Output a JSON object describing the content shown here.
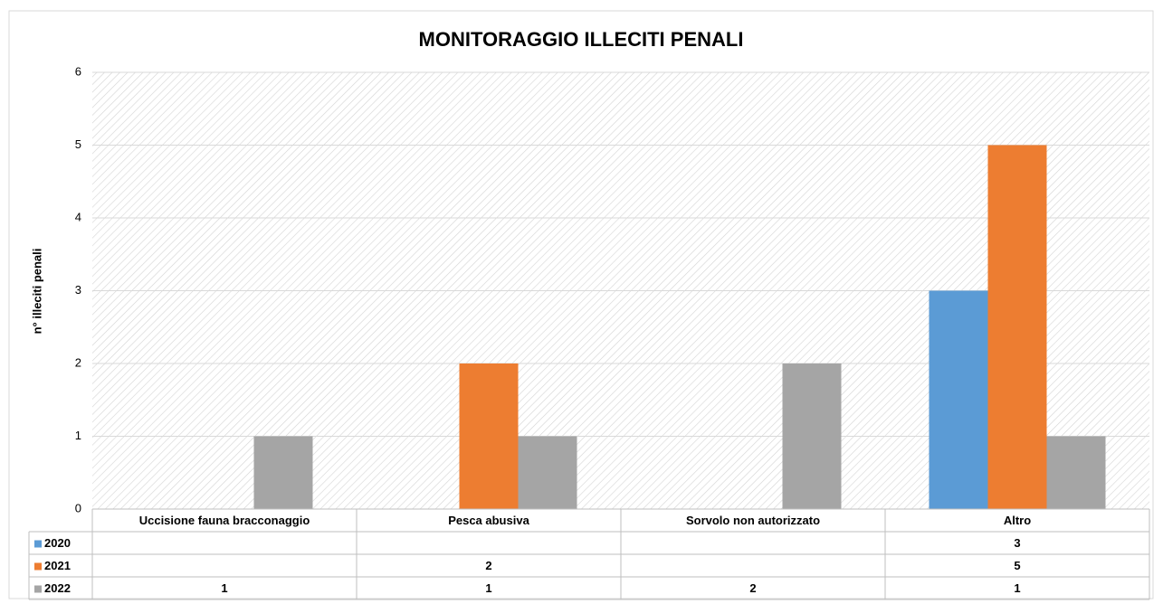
{
  "chart_data": {
    "type": "bar",
    "title": "MONITORAGGIO ILLECITI PENALI",
    "y_label": "n° illeciti penali",
    "categories": [
      "Uccisione fauna bracconaggio",
      "Pesca abusiva",
      "Sorvolo non autorizzato",
      "Altro"
    ],
    "series": [
      {
        "name": "2020",
        "color": "#5b9bd5",
        "values": [
          null,
          null,
          null,
          3
        ]
      },
      {
        "name": "2021",
        "color": "#ed7d31",
        "values": [
          null,
          2,
          null,
          5
        ]
      },
      {
        "name": "2022",
        "color": "#a5a5a5",
        "values": [
          1,
          1,
          2,
          1
        ]
      }
    ],
    "ylim": [
      0,
      6
    ],
    "yticks": [
      0,
      1,
      2,
      3,
      4,
      5,
      6
    ],
    "grid": true,
    "data_table": true
  }
}
